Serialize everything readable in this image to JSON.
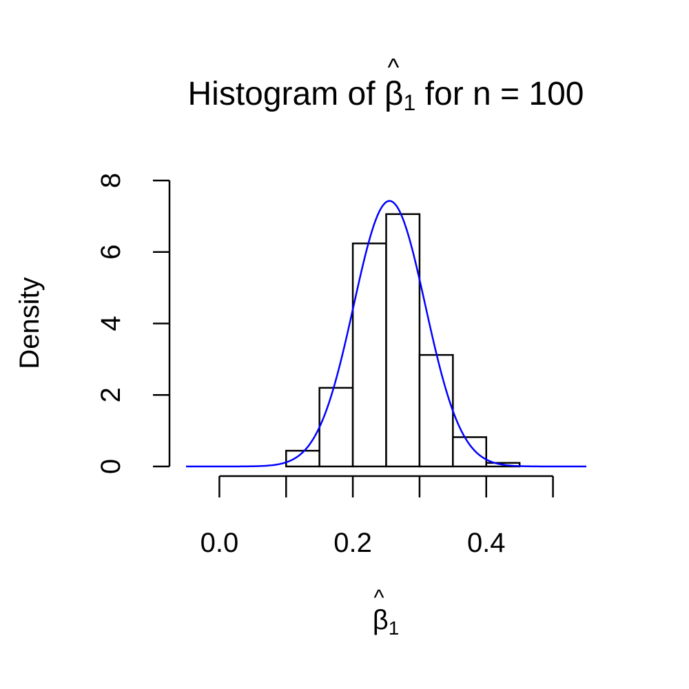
{
  "chart_data": {
    "type": "bar",
    "title": {
      "prefix": "Histogram of ",
      "symbol": "β",
      "hat": "^",
      "subscript": "1",
      "suffix": " for n = 100"
    },
    "xlabel": {
      "symbol": "β",
      "hat": "^",
      "subscript": "1"
    },
    "ylabel": "Density",
    "xlim": [
      -0.05,
      0.55
    ],
    "ylim": [
      0,
      8
    ],
    "x_axis_ticks": [
      0.0,
      0.1,
      0.2,
      0.3,
      0.4,
      0.5
    ],
    "x_tick_labels": [
      {
        "value": 0.0,
        "label": "0.0"
      },
      {
        "value": 0.2,
        "label": "0.2"
      },
      {
        "value": 0.4,
        "label": "0.4"
      }
    ],
    "y_ticks": [
      {
        "value": 0,
        "label": "0"
      },
      {
        "value": 2,
        "label": "2"
      },
      {
        "value": 4,
        "label": "4"
      },
      {
        "value": 6,
        "label": "6"
      },
      {
        "value": 8,
        "label": "8"
      }
    ],
    "bins": [
      {
        "x0": 0.1,
        "x1": 0.15,
        "density": 0.44
      },
      {
        "x0": 0.15,
        "x1": 0.2,
        "density": 2.2
      },
      {
        "x0": 0.2,
        "x1": 0.25,
        "density": 6.24
      },
      {
        "x0": 0.25,
        "x1": 0.3,
        "density": 7.06
      },
      {
        "x0": 0.3,
        "x1": 0.35,
        "density": 3.12
      },
      {
        "x0": 0.35,
        "x1": 0.4,
        "density": 0.82
      },
      {
        "x0": 0.4,
        "x1": 0.45,
        "density": 0.1
      }
    ],
    "density_curve": {
      "kind": "normal",
      "mean": 0.255,
      "sd": 0.0537,
      "x_range": [
        -0.05,
        0.55
      ],
      "color": "#0000ff"
    },
    "bar_fill": "#ffffff",
    "bar_stroke": "#000000",
    "grid": false,
    "legend": "none"
  }
}
